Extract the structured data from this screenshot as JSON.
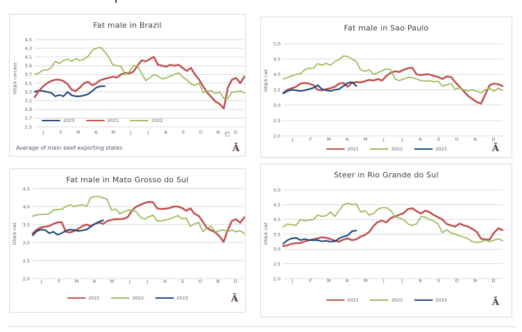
{
  "watermark": {
    "glyph": "Ā",
    "color": "#4a332c"
  },
  "colors": {
    "series_2021": "#C0504D",
    "series_2022": "#9BBB59",
    "series_2023": "#1F497D",
    "gridline": "#d9d9d9",
    "panel_border": "#d9d9d9",
    "axis_text": "#595959",
    "title_text": "#3f3f3f",
    "footnote_text": "#4f5b6b"
  },
  "months": [
    "J",
    "F",
    "M",
    "A",
    "M",
    "J",
    "J",
    "A",
    "S",
    "O",
    "N",
    "D"
  ],
  "chart_data": [
    {
      "type": "line",
      "title": "Fat male in Brazil",
      "ylabel": "US$/k carcass",
      "ylim": [
        2.5,
        4.5
      ],
      "ytick_step": 0.2,
      "grid": true,
      "legend_position": "inside-bottom-left",
      "footnote": "Average  of main beef exporting states",
      "x_tick_labels": [
        "J",
        "F",
        "M",
        "A",
        "M",
        "J",
        "J",
        "A",
        "S",
        "O",
        "N",
        "D"
      ],
      "x_unit": "weeks",
      "series": [
        {
          "name": "2023",
          "color": "#1F497D",
          "values": [
            3.3,
            3.33,
            3.32,
            3.3,
            3.28,
            3.2,
            3.23,
            3.2,
            3.3,
            3.22,
            3.2,
            3.2,
            3.22,
            3.25,
            3.32,
            3.4,
            3.43,
            3.43
          ]
        },
        {
          "name": "2021",
          "color": "#C0504D",
          "values": [
            3.18,
            3.32,
            3.42,
            3.5,
            3.55,
            3.58,
            3.58,
            3.55,
            3.48,
            3.35,
            3.32,
            3.4,
            3.5,
            3.53,
            3.45,
            3.5,
            3.57,
            3.6,
            3.62,
            3.65,
            3.63,
            3.7,
            3.74,
            3.72,
            3.76,
            3.9,
            4.02,
            4.0,
            4.05,
            4.1,
            3.92,
            3.9,
            3.88,
            3.92,
            3.9,
            3.92,
            3.85,
            3.78,
            3.85,
            3.7,
            3.58,
            3.42,
            3.28,
            3.18,
            3.08,
            3.02,
            2.92,
            3.4,
            3.58,
            3.62,
            3.5,
            3.65
          ]
        },
        {
          "name": "2022",
          "color": "#9BBB59",
          "values": [
            3.7,
            3.73,
            3.8,
            3.8,
            3.85,
            4.0,
            3.95,
            4.02,
            4.05,
            4.0,
            4.06,
            4.02,
            4.05,
            4.12,
            4.25,
            4.3,
            4.32,
            4.22,
            4.1,
            3.92,
            3.9,
            3.88,
            3.7,
            3.76,
            3.9,
            3.9,
            3.72,
            3.56,
            3.62,
            3.7,
            3.66,
            3.6,
            3.62,
            3.66,
            3.7,
            3.74,
            3.64,
            3.58,
            3.48,
            3.45,
            3.5,
            3.28,
            3.32,
            3.32,
            3.26,
            3.3,
            3.15,
            3.15,
            3.3,
            3.3,
            3.32,
            3.28
          ]
        }
      ]
    },
    {
      "type": "line",
      "title": "Fat male in Sao Paulo",
      "ylabel": "US$/k cwt",
      "ylim": [
        2.0,
        5.0
      ],
      "ytick_step": 0.5,
      "grid": true,
      "legend_position": "bottom-center",
      "x_tick_labels": [
        "J",
        "F",
        "M",
        "A",
        "M",
        "J",
        "J",
        "A",
        "S",
        "O",
        "N",
        "D"
      ],
      "x_unit": "weeks",
      "series": [
        {
          "name": "2021",
          "color": "#C0504D",
          "values": [
            3.4,
            3.5,
            3.55,
            3.6,
            3.7,
            3.72,
            3.7,
            3.65,
            3.5,
            3.48,
            3.52,
            3.55,
            3.6,
            3.7,
            3.72,
            3.6,
            3.72,
            3.75,
            3.74,
            3.78,
            3.82,
            3.8,
            3.85,
            3.8,
            3.95,
            4.05,
            4.1,
            4.08,
            4.15,
            4.2,
            4.22,
            4.0,
            3.98,
            4.0,
            4.0,
            3.95,
            3.92,
            3.85,
            3.93,
            3.92,
            3.75,
            3.6,
            3.45,
            3.3,
            3.2,
            3.1,
            3.05,
            3.35,
            3.65,
            3.7,
            3.68,
            3.62
          ]
        },
        {
          "name": "2022",
          "color": "#9BBB59",
          "values": [
            3.85,
            3.9,
            3.95,
            4.0,
            4.02,
            4.15,
            4.2,
            4.2,
            4.35,
            4.3,
            4.36,
            4.3,
            4.42,
            4.48,
            4.6,
            4.58,
            4.5,
            4.42,
            4.15,
            4.1,
            4.15,
            4.0,
            4.05,
            4.12,
            4.18,
            4.15,
            3.85,
            3.8,
            3.85,
            3.9,
            3.9,
            3.85,
            3.8,
            3.78,
            3.8,
            3.76,
            3.78,
            3.62,
            3.66,
            3.7,
            3.52,
            3.56,
            3.5,
            3.46,
            3.5,
            3.45,
            3.4,
            3.5,
            3.55,
            3.45,
            3.55,
            3.48
          ]
        },
        {
          "name": "2023",
          "color": "#1F497D",
          "values": [
            3.38,
            3.46,
            3.5,
            3.48,
            3.46,
            3.48,
            3.52,
            3.56,
            3.65,
            3.52,
            3.48,
            3.46,
            3.5,
            3.52,
            3.62,
            3.72,
            3.75,
            3.62
          ]
        }
      ]
    },
    {
      "type": "line",
      "title": "Fat male in Mato Grosso do Sul",
      "ylabel": "US$/k cwt",
      "ylim": [
        2.0,
        4.5
      ],
      "ytick_step": 0.5,
      "grid": true,
      "legend_position": "bottom-center",
      "x_tick_labels": [
        "J",
        "F",
        "M",
        "A",
        "M",
        "J",
        "J",
        "A",
        "S",
        "O",
        "N",
        "D"
      ],
      "x_unit": "weeks",
      "series": [
        {
          "name": "2021",
          "color": "#C0504D",
          "values": [
            3.25,
            3.36,
            3.42,
            3.44,
            3.46,
            3.52,
            3.56,
            3.57,
            3.3,
            3.28,
            3.32,
            3.38,
            3.46,
            3.5,
            3.46,
            3.52,
            3.56,
            3.52,
            3.6,
            3.63,
            3.65,
            3.65,
            3.66,
            3.72,
            3.9,
            4.0,
            4.05,
            4.1,
            4.13,
            4.12,
            3.95,
            3.93,
            3.94,
            3.96,
            4.0,
            4.0,
            3.96,
            3.88,
            3.95,
            3.8,
            3.74,
            3.58,
            3.4,
            3.34,
            3.28,
            3.18,
            3.02,
            3.35,
            3.6,
            3.65,
            3.55,
            3.7
          ]
        },
        {
          "name": "2022",
          "color": "#9BBB59",
          "values": [
            3.73,
            3.77,
            3.78,
            3.78,
            3.8,
            3.9,
            3.92,
            3.92,
            4.0,
            4.05,
            4.0,
            4.03,
            4.05,
            4.0,
            4.25,
            4.28,
            4.28,
            4.24,
            4.2,
            3.9,
            3.93,
            3.8,
            3.86,
            3.9,
            3.9,
            3.85,
            3.7,
            3.65,
            3.72,
            3.76,
            3.6,
            3.6,
            3.63,
            3.66,
            3.7,
            3.75,
            3.66,
            3.68,
            3.45,
            3.52,
            3.56,
            3.3,
            3.42,
            3.45,
            3.3,
            3.33,
            3.35,
            3.3,
            3.35,
            3.3,
            3.33,
            3.25
          ]
        },
        {
          "name": "2023",
          "color": "#1F497D",
          "values": [
            3.2,
            3.32,
            3.36,
            3.35,
            3.26,
            3.3,
            3.22,
            3.26,
            3.33,
            3.36,
            3.35,
            3.32,
            3.34,
            3.36,
            3.44,
            3.52,
            3.58,
            3.62
          ]
        }
      ]
    },
    {
      "type": "line",
      "title": "Steer  in Rio Grande do Sul",
      "ylabel": "US$/k cwt",
      "ylim": [
        2.0,
        5.0
      ],
      "ytick_step": 0.5,
      "grid": true,
      "legend_position": "bottom-center",
      "x_tick_labels": [
        "J",
        "F",
        "M",
        "A",
        "M",
        "J",
        "J",
        "A",
        "S",
        "O",
        "N",
        "D"
      ],
      "x_unit": "weeks",
      "series": [
        {
          "name": "2021",
          "color": "#C0504D",
          "values": [
            3.1,
            3.13,
            3.18,
            3.2,
            3.2,
            3.26,
            3.3,
            3.33,
            3.36,
            3.4,
            3.38,
            3.34,
            3.28,
            3.25,
            3.32,
            3.36,
            3.3,
            3.33,
            3.42,
            3.48,
            3.58,
            3.78,
            3.92,
            3.96,
            3.9,
            4.05,
            4.1,
            4.16,
            4.22,
            4.35,
            4.38,
            4.28,
            4.2,
            4.3,
            4.25,
            4.15,
            4.08,
            4.0,
            3.85,
            3.8,
            3.76,
            3.86,
            3.8,
            3.76,
            3.68,
            3.58,
            3.35,
            3.33,
            3.32,
            3.55,
            3.7,
            3.64
          ]
        },
        {
          "name": "2022",
          "color": "#9BBB59",
          "values": [
            3.75,
            3.85,
            3.82,
            3.8,
            4.0,
            3.95,
            3.98,
            4.0,
            4.15,
            4.1,
            4.13,
            4.25,
            4.1,
            4.3,
            4.5,
            4.55,
            4.5,
            4.53,
            4.25,
            4.3,
            4.15,
            4.2,
            4.35,
            4.4,
            4.4,
            4.3,
            4.1,
            4.05,
            4.0,
            3.85,
            3.8,
            3.85,
            4.1,
            4.08,
            4.0,
            3.95,
            3.85,
            3.55,
            3.65,
            3.55,
            3.5,
            3.45,
            3.4,
            3.35,
            3.25,
            3.22,
            3.25,
            3.3,
            3.25,
            3.3,
            3.35,
            3.28
          ]
        },
        {
          "name": "2023",
          "color": "#1F497D",
          "values": [
            3.18,
            3.3,
            3.36,
            3.38,
            3.3,
            3.34,
            3.3,
            3.3,
            3.3,
            3.26,
            3.28,
            3.25,
            3.26,
            3.36,
            3.42,
            3.46,
            3.6,
            3.63
          ]
        }
      ]
    }
  ]
}
